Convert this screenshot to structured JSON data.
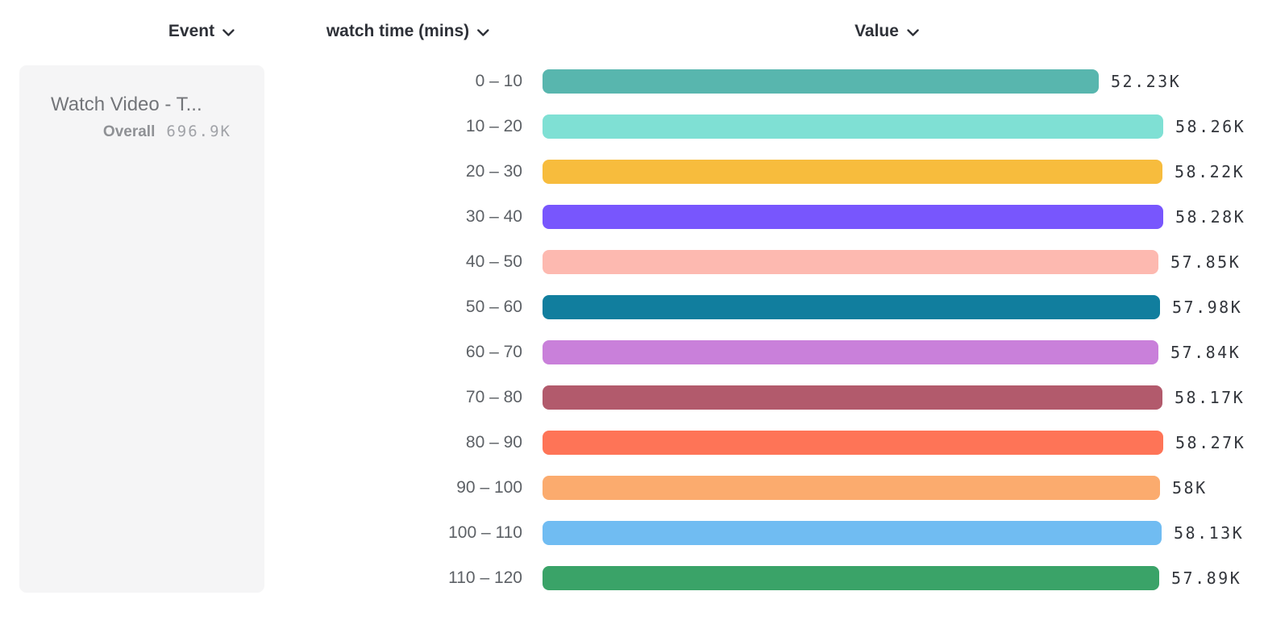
{
  "header": {
    "columns": [
      {
        "id": "event",
        "label": "Event"
      },
      {
        "id": "breakdown",
        "label": "watch time (mins)"
      },
      {
        "id": "value",
        "label": "Value"
      }
    ]
  },
  "event_card": {
    "title": "Watch Video - T...",
    "overall_label": "Overall",
    "overall_value": "696.9K"
  },
  "chart_data": {
    "type": "bar",
    "orientation": "horizontal",
    "title": "",
    "xlabel": "Value",
    "ylabel": "watch time (mins)",
    "categories": [
      "0 – 10",
      "10 – 20",
      "20 – 30",
      "30 – 40",
      "40 – 50",
      "50 – 60",
      "60 – 70",
      "70 – 80",
      "80 – 90",
      "90 – 100",
      "100 – 110",
      "110 – 120"
    ],
    "values": [
      52230,
      58260,
      58220,
      58280,
      57850,
      57980,
      57840,
      58170,
      58270,
      58000,
      58130,
      57890
    ],
    "value_labels": [
      "52.23K",
      "58.26K",
      "58.22K",
      "58.28K",
      "57.85K",
      "57.98K",
      "57.84K",
      "58.17K",
      "58.27K",
      "58K",
      "58.13K",
      "57.89K"
    ],
    "colors": [
      "#58b6ae",
      "#7fe0d4",
      "#f7bc3d",
      "#7856fd",
      "#fdb9b0",
      "#117e9e",
      "#c980da",
      "#b25a6c",
      "#fe7457",
      "#fbab6e",
      "#70bcf2",
      "#3aa368"
    ],
    "xlim": [
      0,
      58280
    ],
    "grid": false,
    "legend": "none",
    "accent_colors": {
      "label_text": "#5d6166",
      "value_text": "#33363c",
      "header_text": "#2e3138"
    }
  }
}
